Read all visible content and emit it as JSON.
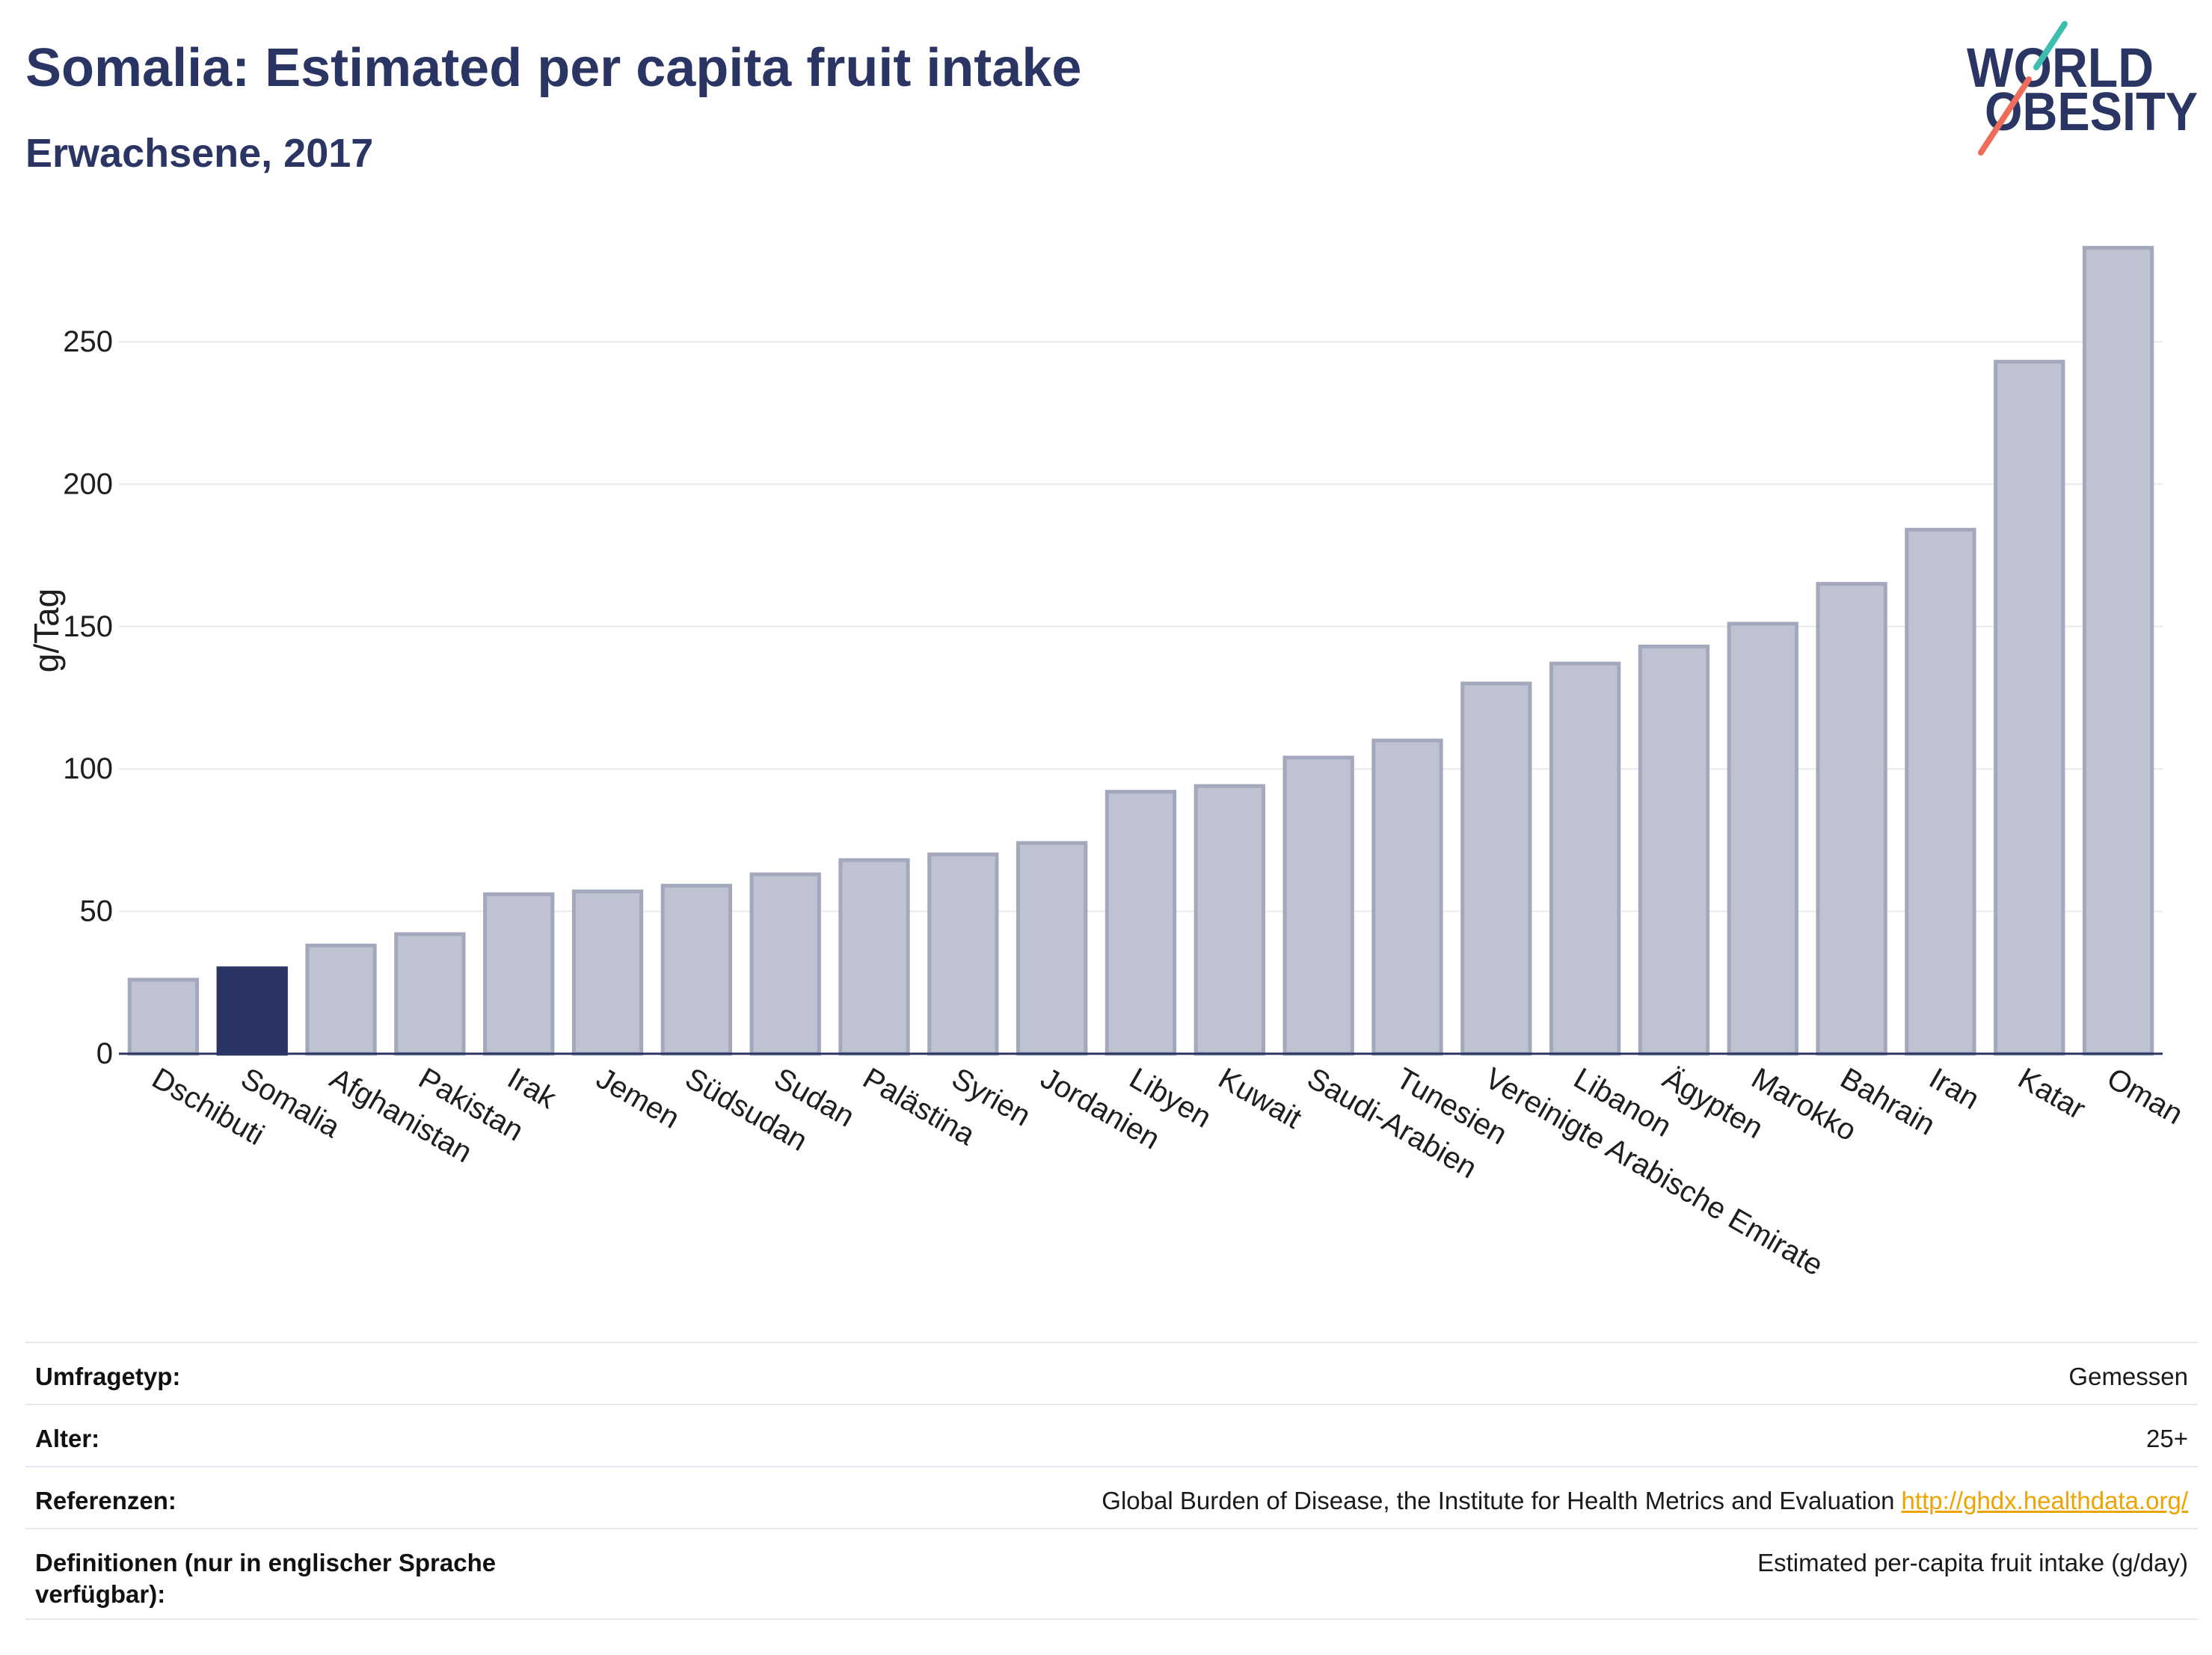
{
  "chart_data": {
    "type": "bar",
    "title": "Somalia: Estimated per capita fruit intake",
    "subtitle": "Erwachsene, 2017",
    "ylabel": "g/Tag",
    "categories": [
      "Dschibuti",
      "Somalia",
      "Afghanistan",
      "Pakistan",
      "Irak",
      "Jemen",
      "Südsudan",
      "Sudan",
      "Palästina",
      "Syrien",
      "Jordanien",
      "Libyen",
      "Kuwait",
      "Saudi-Arabien",
      "Tunesien",
      "Vereinigte Arabische Emirate",
      "Libanon",
      "Ägypten",
      "Marokko",
      "Bahrain",
      "Iran",
      "Katar",
      "Oman"
    ],
    "values": [
      26,
      30,
      38,
      42,
      56,
      57,
      59,
      63,
      68,
      70,
      74,
      92,
      94,
      104,
      110,
      130,
      137,
      143,
      151,
      165,
      184,
      243,
      283
    ],
    "highlight": "Somalia",
    "ylim": [
      0,
      297
    ],
    "yticks": [
      0,
      50,
      100,
      150,
      200,
      250
    ],
    "grid": true,
    "show_legend": false
  },
  "logo": {
    "line1": "WORLD",
    "line2": "OBESITY"
  },
  "table": {
    "rows": [
      {
        "label": "Umfragetyp:",
        "value": "Gemessen"
      },
      {
        "label": "Alter:",
        "value": "25+"
      },
      {
        "label": "Referenzen:",
        "value": "Global Burden of Disease, the Institute for Health Metrics and Evaluation",
        "link": "http://ghdx.healthdata.org/"
      },
      {
        "label": "Definitionen (nur in englischer Sprache verfügbar):",
        "value": "Estimated per-capita fruit intake (g/day)"
      }
    ]
  },
  "colors": {
    "navy": "#2b3563",
    "bar": "#bfc2d0",
    "bar_border": "#a4a8bd",
    "highlight_bar": "#2b3563",
    "grid": "#e9eaef",
    "axis": "#2b3563",
    "logo_teal": "#3cbfae",
    "logo_coral": "#ee6c5a",
    "link": "#eea400",
    "rule": "#e6e8ef"
  }
}
